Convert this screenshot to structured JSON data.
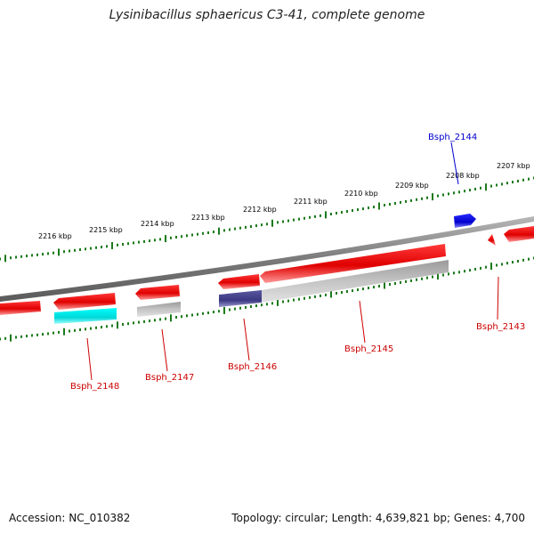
{
  "title": "Lysinibacillus sphaericus C3-41, complete genome",
  "footer": {
    "accession": "Accession: NC_010382",
    "summary": "Topology: circular; Length: 4,639,821 bp; Genes: 4,700"
  },
  "kbp_labels": [
    "2216 kbp",
    "2215 kbp",
    "2214 kbp",
    "2213 kbp",
    "2212 kbp",
    "2211 kbp",
    "2210 kbp",
    "2209 kbp",
    "2208 kbp",
    "2207 kbp"
  ],
  "gene_labels": {
    "Bsph_2144": "Bsph_2144",
    "Bsph_2143": "Bsph_2143",
    "Bsph_2145": "Bsph_2145",
    "Bsph_2146": "Bsph_2146",
    "Bsph_2147": "Bsph_2147",
    "Bsph_2148": "Bsph_2148"
  },
  "colors": {
    "tick": "#1a7a1a",
    "backbone": "#888888",
    "forward_gene": "#ee1111",
    "blue_gene": "#1111dd",
    "cyan_product": "#00e5e5",
    "navy_product": "#4a4890",
    "grey_product": "#b0b0b0",
    "red_label": "#cc0000",
    "blue_label": "#0000cc"
  }
}
